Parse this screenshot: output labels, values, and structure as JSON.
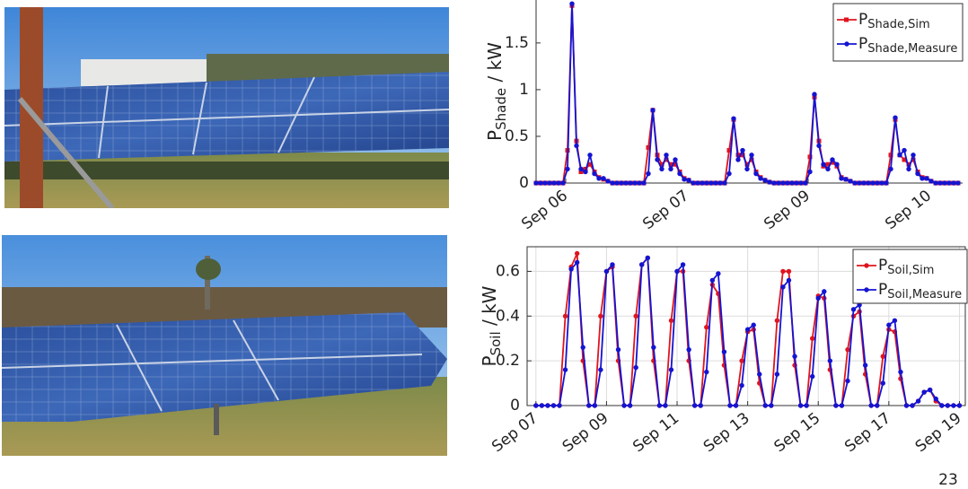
{
  "chart_data": [
    {
      "type": "line",
      "ylabel": {
        "main": "P",
        "sub": "Shade",
        "unit": " / kW"
      },
      "x": [
        0,
        1,
        2,
        3,
        4,
        5,
        6,
        7,
        8,
        9,
        10,
        11,
        12,
        13,
        14,
        15,
        16,
        17,
        18,
        19,
        20,
        21,
        22,
        23,
        24,
        25,
        26,
        27,
        28,
        29,
        30,
        31,
        32,
        33,
        34,
        35,
        36,
        37,
        38,
        39,
        40,
        41,
        42,
        43,
        44,
        45,
        46,
        47,
        48,
        49,
        50,
        51,
        52,
        53,
        54,
        55,
        56,
        57,
        58,
        59,
        60,
        61,
        62,
        63,
        64,
        65,
        66,
        67,
        68,
        69,
        70,
        71,
        72,
        73,
        74,
        75,
        76,
        77,
        78,
        79,
        80,
        81,
        82,
        83,
        84,
        85,
        86,
        87,
        88,
        89,
        90,
        91,
        92,
        93,
        94
      ],
      "xlim": [
        0,
        95
      ],
      "xticks": [
        {
          "value": 6.6,
          "label": "Sep 06"
        },
        {
          "value": 33.6,
          "label": "Sep 07"
        },
        {
          "value": 60.6,
          "label": "Sep 09"
        },
        {
          "value": 87.6,
          "label": "Sep 10"
        }
      ],
      "ylim": [
        0,
        1.96
      ],
      "yticks": [
        0,
        0.5,
        1,
        1.5
      ],
      "grid": false,
      "box": false,
      "series": [
        {
          "name": "P",
          "name_sub": "Shade,Sim",
          "color": "#e0141e",
          "marker": "square",
          "values": [
            0,
            0,
            0,
            0,
            0,
            0,
            0,
            0.35,
            1.9,
            0.45,
            0.12,
            0.15,
            0.2,
            0.12,
            0.06,
            0.04,
            0.02,
            0,
            0,
            0,
            0,
            0,
            0,
            0,
            0,
            0.38,
            0.78,
            0.3,
            0.2,
            0.25,
            0.2,
            0.2,
            0.12,
            0.05,
            0.03,
            0,
            0,
            0,
            0,
            0,
            0,
            0,
            0,
            0.35,
            0.68,
            0.3,
            0.3,
            0.2,
            0.25,
            0.12,
            0.06,
            0.03,
            0.01,
            0,
            0,
            0,
            0,
            0,
            0,
            0,
            0,
            0.28,
            0.92,
            0.45,
            0.18,
            0.2,
            0.22,
            0.18,
            0.06,
            0.04,
            0.02,
            0,
            0,
            0,
            0,
            0,
            0,
            0,
            0,
            0.3,
            0.68,
            0.3,
            0.25,
            0.2,
            0.25,
            0.12,
            0.06,
            0.05,
            0.02,
            0,
            0,
            0,
            0,
            0,
            0
          ]
        },
        {
          "name": "P",
          "name_sub": "Shade,Measure",
          "color": "#1414d2",
          "marker": "circle",
          "values": [
            0,
            0,
            0,
            0,
            0,
            0,
            0,
            0.15,
            1.92,
            0.4,
            0.15,
            0.12,
            0.3,
            0.1,
            0.05,
            0.05,
            0.02,
            0,
            0,
            0,
            0,
            0,
            0,
            0,
            0,
            0.1,
            0.78,
            0.25,
            0.15,
            0.3,
            0.15,
            0.25,
            0.1,
            0.04,
            0.03,
            0,
            0,
            0,
            0,
            0,
            0,
            0,
            0,
            0.1,
            0.69,
            0.25,
            0.35,
            0.15,
            0.3,
            0.1,
            0.05,
            0.03,
            0.01,
            0,
            0,
            0,
            0,
            0,
            0,
            0,
            0,
            0.12,
            0.95,
            0.4,
            0.2,
            0.15,
            0.25,
            0.2,
            0.05,
            0.04,
            0.02,
            0,
            0,
            0,
            0,
            0,
            0,
            0,
            0,
            0.15,
            0.7,
            0.3,
            0.35,
            0.15,
            0.3,
            0.1,
            0.05,
            0.05,
            0.02,
            0,
            0,
            0,
            0,
            0,
            0
          ]
        }
      ]
    },
    {
      "type": "line",
      "ylabel": {
        "main": "P",
        "sub": "Soil",
        "unit": " / kW"
      },
      "x": [
        0,
        4,
        8,
        12,
        16,
        20,
        24,
        28,
        32,
        36,
        40,
        44,
        48,
        52,
        56,
        60,
        64,
        68,
        72,
        76,
        80,
        84,
        88,
        92,
        96,
        100,
        104,
        108,
        112,
        116,
        120,
        124,
        128,
        132,
        136,
        140,
        144,
        148,
        152,
        156,
        160,
        164,
        168,
        172,
        176,
        180,
        184,
        188,
        192,
        196,
        200,
        204,
        208,
        212,
        216,
        220,
        224,
        228,
        232,
        236,
        240,
        244,
        248,
        252,
        256,
        260,
        264,
        268,
        272,
        276,
        280,
        284,
        288
      ],
      "xlim": [
        -6,
        292
      ],
      "xticks": [
        {
          "value": 0,
          "label": "Sep 07"
        },
        {
          "value": 48,
          "label": "Sep 09"
        },
        {
          "value": 96,
          "label": "Sep 11"
        },
        {
          "value": 144,
          "label": "Sep 13"
        },
        {
          "value": 192,
          "label": "Sep 15"
        },
        {
          "value": 240,
          "label": "Sep 17"
        },
        {
          "value": 288,
          "label": "Sep 19"
        }
      ],
      "ylim": [
        0,
        0.71
      ],
      "yticks": [
        0,
        0.2,
        0.4,
        0.6
      ],
      "grid": true,
      "box": true,
      "series": [
        {
          "name": "P",
          "name_sub": "Soil,Sim",
          "color": "#e0141e",
          "marker": "circle",
          "values": [
            0,
            0,
            0,
            0,
            0,
            0.4,
            0.62,
            0.68,
            0.2,
            0,
            0,
            0.4,
            0.6,
            0.62,
            0.2,
            0,
            0,
            0.4,
            0.63,
            0.66,
            0.2,
            0,
            0,
            0.38,
            0.6,
            0.6,
            0.2,
            0,
            0,
            0.35,
            0.54,
            0.5,
            0.18,
            0,
            0,
            0.2,
            0.33,
            0.34,
            0.1,
            0,
            0,
            0.38,
            0.6,
            0.6,
            0.18,
            0,
            0,
            0.3,
            0.49,
            0.48,
            0.16,
            0,
            0,
            0.25,
            0.4,
            0.42,
            0.14,
            0,
            0,
            0.22,
            0.34,
            0.33,
            0.12,
            0,
            0,
            0.02,
            0.06,
            0.07,
            0.02,
            0,
            0,
            0,
            0
          ]
        },
        {
          "name": "P",
          "name_sub": "Soil,Measure",
          "color": "#1414d2",
          "marker": "circle",
          "values": [
            0,
            0,
            0,
            0,
            0,
            0.16,
            0.61,
            0.64,
            0.26,
            0,
            0,
            0.16,
            0.6,
            0.63,
            0.25,
            0,
            0,
            0.17,
            0.63,
            0.66,
            0.26,
            0,
            0,
            0.16,
            0.6,
            0.63,
            0.25,
            0,
            0,
            0.15,
            0.56,
            0.59,
            0.24,
            0,
            0,
            0.09,
            0.34,
            0.36,
            0.14,
            0,
            0,
            0.14,
            0.53,
            0.56,
            0.22,
            0,
            0,
            0.13,
            0.48,
            0.51,
            0.2,
            0,
            0,
            0.11,
            0.43,
            0.45,
            0.18,
            0,
            0,
            0.1,
            0.36,
            0.38,
            0.15,
            0,
            0,
            0.02,
            0.06,
            0.07,
            0.03,
            0,
            0,
            0,
            0
          ]
        }
      ]
    }
  ],
  "page_number": "23"
}
